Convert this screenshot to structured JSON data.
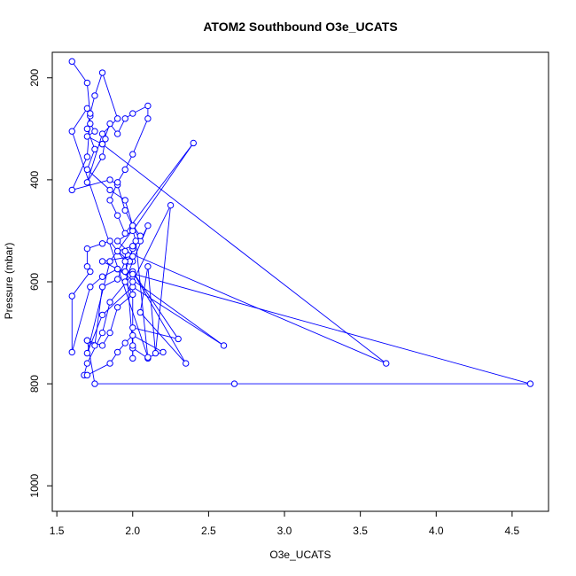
{
  "chart_data": {
    "type": "line",
    "title": "ATOM2 Southbound O3e_UCATS",
    "xlabel": "O3e_UCATS",
    "ylabel": "Pressure (mbar)",
    "xlim": [
      1.47,
      4.74
    ],
    "ylim": [
      1050,
      150
    ],
    "y_reversed": true,
    "x_ticks": [
      "1.5",
      "2.0",
      "2.5",
      "3.0",
      "3.5",
      "4.0",
      "4.5"
    ],
    "y_ticks": [
      "200",
      "400",
      "600",
      "800",
      "1000"
    ],
    "grid": false,
    "legend": "none",
    "color": "#0000ff",
    "series": [
      {
        "points": [
          [
            1.6,
            168
          ],
          [
            1.7,
            210
          ],
          [
            1.72,
            275
          ],
          [
            1.7,
            355
          ],
          [
            1.6,
            420
          ],
          [
            1.85,
            400
          ],
          [
            1.9,
            410
          ],
          [
            1.95,
            460
          ],
          [
            2.0,
            490
          ],
          [
            2.05,
            520
          ],
          [
            2.1,
            490
          ],
          [
            2.0,
            560
          ],
          [
            1.95,
            600
          ],
          [
            2.0,
            625
          ],
          [
            1.9,
            650
          ],
          [
            1.85,
            700
          ],
          [
            1.8,
            725
          ],
          [
            1.7,
            715
          ],
          [
            1.75,
            800
          ],
          [
            2.67,
            800
          ],
          [
            4.62,
            800
          ],
          [
            1.95,
            580
          ],
          [
            2.0,
            535
          ],
          [
            1.98,
            560
          ],
          [
            1.9,
            540
          ],
          [
            1.85,
            520
          ],
          [
            1.8,
            525
          ],
          [
            1.7,
            535
          ],
          [
            1.7,
            570
          ],
          [
            1.72,
            580
          ],
          [
            1.6,
            628
          ],
          [
            1.6,
            738
          ],
          [
            1.72,
            610
          ],
          [
            1.8,
            590
          ],
          [
            1.9,
            575
          ],
          [
            2.6,
            725
          ],
          [
            2.0,
            610
          ],
          [
            1.8,
            665
          ],
          [
            1.7,
            740
          ],
          [
            1.85,
            560
          ],
          [
            2.0,
            498
          ],
          [
            2.02,
            520
          ],
          [
            2.1,
            750
          ],
          [
            2.0,
            730
          ],
          [
            2.0,
            750
          ],
          [
            2.0,
            690
          ],
          [
            2.3,
            712
          ],
          [
            2.0,
            580
          ],
          [
            2.35,
            760
          ],
          [
            2.05,
            660
          ],
          [
            2.1,
            570
          ],
          [
            2.15,
            740
          ],
          [
            2.25,
            450
          ],
          [
            2.0,
            600
          ],
          [
            2.0,
            725
          ],
          [
            1.95,
            540
          ],
          [
            3.67,
            760
          ],
          [
            1.8,
            330
          ],
          [
            1.85,
            290
          ],
          [
            1.9,
            310
          ],
          [
            1.95,
            280
          ],
          [
            2.0,
            270
          ],
          [
            2.1,
            255
          ],
          [
            2.1,
            280
          ],
          [
            2.0,
            350
          ],
          [
            1.95,
            380
          ],
          [
            1.9,
            405
          ],
          [
            1.85,
            440
          ],
          [
            1.9,
            470
          ],
          [
            1.95,
            505
          ],
          [
            2.4,
            328
          ],
          [
            2.0,
            500
          ],
          [
            1.9,
            520
          ],
          [
            2.0,
            550
          ],
          [
            1.8,
            560
          ],
          [
            1.9,
            575
          ],
          [
            2.0,
            585
          ],
          [
            1.85,
            640
          ],
          [
            1.8,
            700
          ],
          [
            1.7,
            760
          ],
          [
            1.68,
            783
          ],
          [
            1.7,
            783
          ],
          [
            1.85,
            760
          ],
          [
            1.9,
            738
          ],
          [
            1.95,
            720
          ],
          [
            2.0,
            705
          ],
          [
            2.2,
            738
          ],
          [
            2.1,
            748
          ],
          [
            1.6,
            305
          ],
          [
            1.7,
            260
          ],
          [
            1.72,
            290
          ],
          [
            1.75,
            305
          ],
          [
            1.7,
            315
          ],
          [
            1.8,
            330
          ],
          [
            1.82,
            320
          ],
          [
            1.8,
            355
          ],
          [
            1.7,
            405
          ],
          [
            1.8,
            310
          ],
          [
            1.9,
            280
          ],
          [
            1.8,
            190
          ],
          [
            1.75,
            235
          ],
          [
            1.72,
            270
          ],
          [
            1.7,
            300
          ],
          [
            1.75,
            340
          ],
          [
            1.7,
            380
          ],
          [
            1.85,
            420
          ],
          [
            1.95,
            440
          ],
          [
            2.0,
            490
          ],
          [
            2.05,
            510
          ],
          [
            2.0,
            530
          ],
          [
            1.9,
            540
          ],
          [
            1.95,
            560
          ],
          [
            1.9,
            595
          ],
          [
            1.8,
            610
          ],
          [
            1.75,
            725
          ],
          [
            1.7,
            715
          ]
        ]
      }
    ]
  }
}
